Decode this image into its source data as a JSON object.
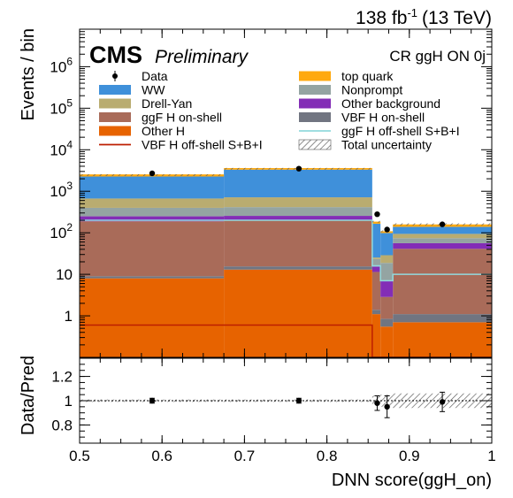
{
  "header": {
    "lumi": "138 fb",
    "lumi_exp": "-1",
    "energy": "(13 TeV)",
    "cms": "CMS",
    "preliminary": "Preliminary",
    "region": "CR ggH ON 0j"
  },
  "chart_data": [
    {
      "type": "bar",
      "stacked": true,
      "ylabel": "Events / bin",
      "ylog": true,
      "ylim": [
        0.1,
        8000000
      ],
      "xlim": [
        0.5,
        1.0
      ],
      "yticks": [
        {
          "value": 1,
          "label": "1"
        },
        {
          "value": 10,
          "label": "10"
        },
        {
          "value": 100,
          "label": "10",
          "exp": "2"
        },
        {
          "value": 1000,
          "label": "10",
          "exp": "3"
        },
        {
          "value": 10000,
          "label": "10",
          "exp": "4"
        },
        {
          "value": 100000,
          "label": "10",
          "exp": "5"
        },
        {
          "value": 1000000,
          "label": "10",
          "exp": "6"
        }
      ],
      "bin_edges": [
        0.5,
        0.675,
        0.855,
        0.865,
        0.88,
        1.0
      ],
      "series": [
        {
          "name": "Other H",
          "color": "#e76300",
          "values": [
            8,
            13,
            1.1,
            0.55,
            0.7
          ]
        },
        {
          "name": "VBF H on-shell",
          "color": "#717581",
          "values": [
            1,
            2.5,
            0.3,
            0.3,
            0.4
          ]
        },
        {
          "name": "ggF H on-shell",
          "color": "#a96b59",
          "values": [
            180,
            180,
            10,
            2,
            40
          ]
        },
        {
          "name": "Other background",
          "color": "#832db6",
          "values": [
            60,
            60,
            4,
            4,
            15
          ]
        },
        {
          "name": "Nonprompt",
          "color": "#94a4a2",
          "values": [
            150,
            160,
            8,
            12,
            18
          ]
        },
        {
          "name": "Drell-Yan",
          "color": "#b9ac70",
          "values": [
            270,
            300,
            2,
            10,
            20
          ]
        },
        {
          "name": "WW",
          "color": "#3f90da",
          "values": [
            1600,
            2600,
            140,
            70,
            45
          ]
        },
        {
          "name": "top quark",
          "color": "#ffa90e",
          "values": [
            280,
            300,
            20,
            10,
            20
          ]
        }
      ],
      "lines": [
        {
          "name": "ggF H off-shell S+B+I",
          "color": "#92dadd",
          "values": [
            200,
            200,
            16,
            7,
            10
          ]
        },
        {
          "name": "VBF H off-shell S+B+I",
          "color": "#bd1f01",
          "values": [
            0.6,
            0.6,
            0.1,
            0.1,
            0.1
          ]
        }
      ],
      "data": {
        "name": "Data",
        "x": [
          0.588,
          0.766,
          0.861,
          0.873,
          0.94
        ],
        "y": [
          2700,
          3500,
          280,
          120,
          160
        ]
      },
      "legend": {
        "columns": [
          [
            {
              "label": "Data",
              "kind": "marker"
            },
            {
              "label": "WW",
              "kind": "fill",
              "color": "#3f90da"
            },
            {
              "label": "Drell-Yan",
              "kind": "fill",
              "color": "#b9ac70"
            },
            {
              "label": "ggF H on-shell",
              "kind": "fill",
              "color": "#a96b59"
            },
            {
              "label": "Other H",
              "kind": "fill",
              "color": "#e76300"
            },
            {
              "label": "VBF H off-shell S+B+I",
              "kind": "line",
              "color": "#bd1f01"
            }
          ],
          [
            {
              "label": "top quark",
              "kind": "fill",
              "color": "#ffa90e"
            },
            {
              "label": "Nonprompt",
              "kind": "fill",
              "color": "#94a4a2"
            },
            {
              "label": "Other background",
              "kind": "fill",
              "color": "#832db6"
            },
            {
              "label": "VBF H on-shell",
              "kind": "fill",
              "color": "#717581"
            },
            {
              "label": "ggF H off-shell S+B+I",
              "kind": "line",
              "color": "#92dadd"
            },
            {
              "label": "Total uncertainty",
              "kind": "hatch"
            }
          ]
        ]
      }
    },
    {
      "type": "scatter",
      "ylabel": "Data/Pred",
      "xlabel": "DNN score(ggH_on)",
      "xlim": [
        0.5,
        1.0
      ],
      "ylim": [
        0.65,
        1.35
      ],
      "reference": 1.0,
      "yticks": [
        "0.8",
        "1",
        "1.2"
      ],
      "xticks": [
        "0.5",
        "0.6",
        "0.7",
        "0.8",
        "0.9",
        "1"
      ],
      "uncertainty": [
        0.01,
        0.01,
        0.04,
        0.05,
        0.06
      ],
      "points": {
        "x": [
          0.588,
          0.766,
          0.861,
          0.873,
          0.94
        ],
        "y": [
          1.0,
          1.0,
          0.98,
          0.95,
          0.99
        ],
        "err": [
          0.02,
          0.02,
          0.06,
          0.09,
          0.08
        ]
      }
    }
  ]
}
